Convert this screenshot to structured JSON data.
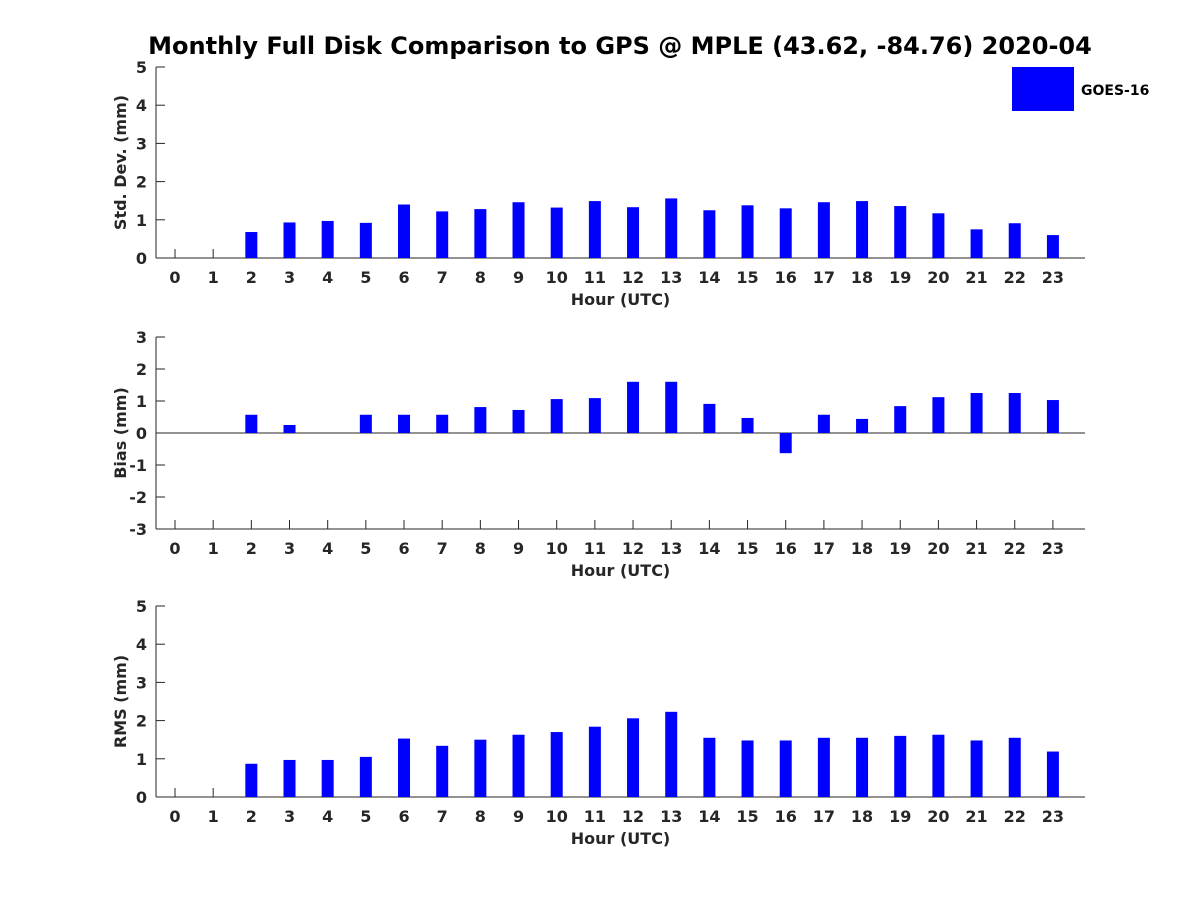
{
  "figure": {
    "title": "Monthly Full Disk Comparison to GPS @ MPLE (43.62, -84.76) 2020-04",
    "legend": {
      "label": "GOES-16",
      "color": "#0000ff"
    }
  },
  "chart_data": [
    {
      "type": "bar",
      "ylabel": "Std. Dev. (mm)",
      "xlabel": "Hour (UTC)",
      "ylim": [
        0,
        5
      ],
      "yticks": [
        0,
        1,
        2,
        3,
        4,
        5
      ],
      "categories": [
        "0",
        "1",
        "2",
        "3",
        "4",
        "5",
        "6",
        "7",
        "8",
        "9",
        "10",
        "11",
        "12",
        "13",
        "14",
        "15",
        "16",
        "17",
        "18",
        "19",
        "20",
        "21",
        "22",
        "23"
      ],
      "series": [
        {
          "name": "GOES-16",
          "color": "#0000ff",
          "values": [
            null,
            null,
            0.68,
            0.93,
            0.97,
            0.92,
            1.4,
            1.22,
            1.28,
            1.46,
            1.32,
            1.49,
            1.33,
            1.56,
            1.25,
            1.38,
            1.3,
            1.46,
            1.49,
            1.36,
            1.17,
            0.75,
            0.91,
            0.6
          ]
        }
      ]
    },
    {
      "type": "bar",
      "ylabel": "Bias (mm)",
      "xlabel": "Hour (UTC)",
      "ylim": [
        -3,
        3
      ],
      "yticks": [
        -3,
        -2,
        -1,
        0,
        1,
        2,
        3
      ],
      "zero_line": true,
      "categories": [
        "0",
        "1",
        "2",
        "3",
        "4",
        "5",
        "6",
        "7",
        "8",
        "9",
        "10",
        "11",
        "12",
        "13",
        "14",
        "15",
        "16",
        "17",
        "18",
        "19",
        "20",
        "21",
        "22",
        "23"
      ],
      "series": [
        {
          "name": "GOES-16",
          "color": "#0000ff",
          "values": [
            null,
            null,
            0.57,
            0.25,
            0.0,
            0.57,
            0.57,
            0.57,
            0.81,
            0.72,
            1.06,
            1.09,
            1.6,
            1.6,
            0.91,
            0.47,
            -0.63,
            0.57,
            0.44,
            0.84,
            1.12,
            1.25,
            1.25,
            1.03
          ]
        }
      ]
    },
    {
      "type": "bar",
      "ylabel": "RMS (mm)",
      "xlabel": "Hour (UTC)",
      "ylim": [
        0,
        5
      ],
      "yticks": [
        0,
        1,
        2,
        3,
        4,
        5
      ],
      "categories": [
        "0",
        "1",
        "2",
        "3",
        "4",
        "5",
        "6",
        "7",
        "8",
        "9",
        "10",
        "11",
        "12",
        "13",
        "14",
        "15",
        "16",
        "17",
        "18",
        "19",
        "20",
        "21",
        "22",
        "23"
      ],
      "series": [
        {
          "name": "GOES-16",
          "color": "#0000ff",
          "values": [
            null,
            null,
            0.87,
            0.97,
            0.97,
            1.05,
            1.53,
            1.34,
            1.5,
            1.63,
            1.7,
            1.84,
            2.06,
            2.23,
            1.55,
            1.48,
            1.48,
            1.55,
            1.55,
            1.6,
            1.63,
            1.48,
            1.55,
            1.19
          ]
        }
      ]
    }
  ]
}
